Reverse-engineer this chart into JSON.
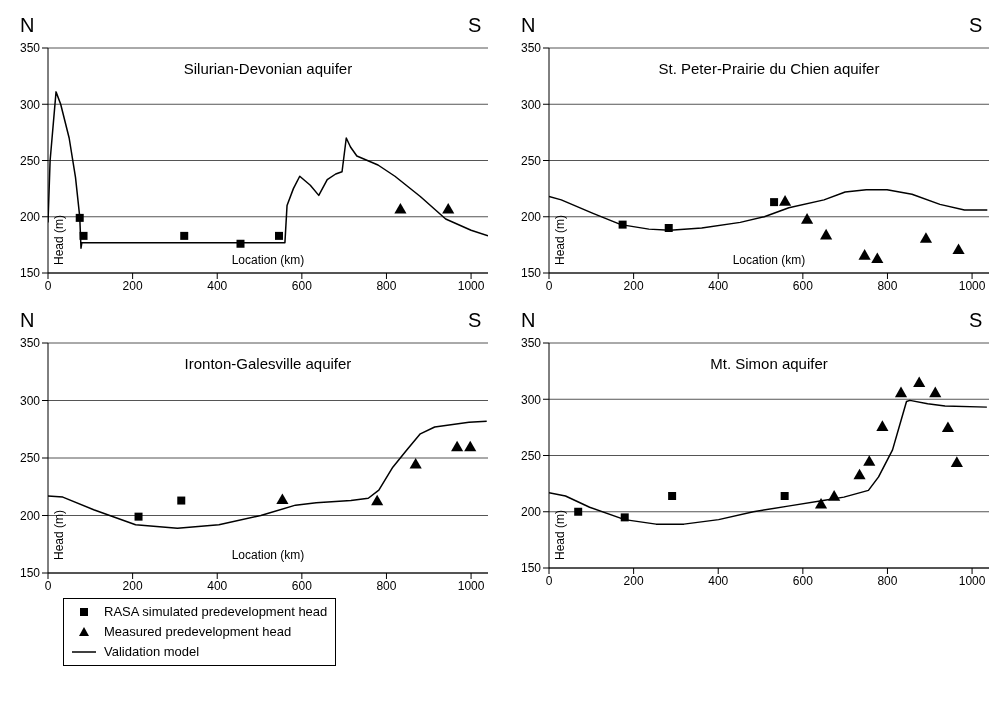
{
  "chart_data": [
    {
      "type": "line",
      "title": "Silurian-Devonian aquifer",
      "xlabel": "Location (km)",
      "ylabel": "Head (m)",
      "annotations": [
        "N",
        "S"
      ],
      "xlim": [
        0,
        1040
      ],
      "xticks": [
        0,
        200,
        400,
        600,
        800,
        1000
      ],
      "ylim": [
        150,
        350
      ],
      "yticks": [
        150,
        200,
        250,
        300,
        350
      ],
      "grid": "y",
      "series": [
        {
          "type": "scatter",
          "marker": "square",
          "color": "#000000",
          "x": [
            75,
            84,
            322,
            455,
            546
          ],
          "values": [
            199,
            183,
            183,
            176,
            183
          ]
        },
        {
          "type": "scatter",
          "marker": "triangle",
          "color": "#000000",
          "x": [
            833,
            946
          ],
          "values": [
            206,
            206
          ]
        },
        {
          "type": "line",
          "marker": "none",
          "color": "#000000",
          "x": [
            0,
            5,
            19,
            30,
            50,
            65,
            75,
            78,
            80,
            560,
            565,
            580,
            595,
            620,
            640,
            660,
            680,
            695,
            705,
            715,
            730,
            780,
            820,
            880,
            940,
            1000,
            1040
          ],
          "values": [
            195,
            250,
            311,
            300,
            270,
            235,
            200,
            172,
            177,
            177,
            210,
            225,
            236,
            228,
            219,
            233,
            238,
            240,
            270,
            262,
            254,
            246,
            236,
            218,
            198,
            188,
            183
          ]
        }
      ]
    },
    {
      "type": "line",
      "title": "St. Peter-Prairie du Chien aquifer",
      "xlabel": "Location (km)",
      "ylabel": "Head (m)",
      "annotations": [
        "N",
        "S"
      ],
      "xlim": [
        0,
        1040
      ],
      "xticks": [
        0,
        200,
        400,
        600,
        800,
        1000
      ],
      "ylim": [
        150,
        350
      ],
      "yticks": [
        150,
        200,
        250,
        300,
        350
      ],
      "grid": "y",
      "series": [
        {
          "type": "scatter",
          "marker": "square",
          "color": "#000000",
          "x": [
            174,
            283,
            532
          ],
          "values": [
            193,
            190,
            213
          ]
        },
        {
          "type": "scatter",
          "marker": "triangle",
          "color": "#000000",
          "x": [
            558,
            610,
            655,
            746,
            776,
            891,
            968
          ],
          "values": [
            213,
            197,
            183,
            165,
            162,
            180,
            170
          ]
        },
        {
          "type": "line",
          "marker": "none",
          "color": "#000000",
          "x": [
            0,
            29,
            104,
            170,
            236,
            286,
            361,
            452,
            509,
            567,
            650,
            700,
            750,
            799,
            858,
            924,
            982,
            1036
          ],
          "values": [
            218,
            215,
            203,
            193,
            189,
            188,
            190,
            195,
            200,
            208,
            215,
            222,
            224,
            224,
            220,
            211,
            206,
            206
          ]
        }
      ]
    },
    {
      "type": "line",
      "title": "Ironton-Galesville aquifer",
      "xlabel": "Location (km)",
      "ylabel": "Head (m)",
      "annotations": [
        "N",
        "S"
      ],
      "xlim": [
        0,
        1040
      ],
      "xticks": [
        0,
        200,
        400,
        600,
        800,
        1000
      ],
      "ylim": [
        150,
        350
      ],
      "yticks": [
        150,
        200,
        250,
        300,
        350
      ],
      "grid": "y",
      "legend": "bottom",
      "series": [
        {
          "type": "scatter",
          "name": "RASA simulated predevelopment head",
          "marker": "square",
          "color": "#000000",
          "x": [
            214,
            315
          ],
          "values": [
            199,
            213
          ]
        },
        {
          "type": "scatter",
          "name": "Measured predevelopment head",
          "marker": "triangle",
          "color": "#000000",
          "x": [
            554,
            778,
            869,
            967,
            998
          ],
          "values": [
            213,
            212,
            244,
            259,
            259
          ]
        },
        {
          "type": "line",
          "name": "Validation model",
          "marker": "none",
          "color": "#000000",
          "x": [
            0,
            35,
            108,
            207,
            306,
            404,
            503,
            585,
            634,
            716,
            757,
            782,
            815,
            848,
            880,
            914,
            995,
            1037
          ],
          "values": [
            217,
            216,
            205,
            192,
            189,
            192,
            200,
            209,
            211,
            213,
            215,
            222,
            242,
            257,
            271,
            277,
            281,
            282
          ]
        }
      ]
    },
    {
      "type": "line",
      "title": "Mt. Simon aquifer",
      "ylabel": "Head (m)",
      "annotations": [
        "N",
        "S"
      ],
      "xlim": [
        0,
        1040
      ],
      "xticks": [
        0,
        200,
        400,
        600,
        800,
        1000
      ],
      "ylim": [
        150,
        350
      ],
      "yticks": [
        150,
        200,
        250,
        300,
        350
      ],
      "grid": "y",
      "series": [
        {
          "type": "scatter",
          "marker": "square",
          "color": "#000000",
          "x": [
            69,
            179,
            291,
            557
          ],
          "values": [
            200,
            195,
            214,
            214
          ]
        },
        {
          "type": "scatter",
          "marker": "triangle",
          "color": "#000000",
          "x": [
            643,
            674,
            734,
            757,
            788,
            832,
            875,
            913,
            943,
            964
          ],
          "values": [
            206,
            213,
            232,
            244,
            275,
            305,
            314,
            305,
            274,
            243
          ]
        },
        {
          "type": "line",
          "marker": "none",
          "color": "#000000",
          "x": [
            0,
            39,
            96,
            179,
            253,
            319,
            401,
            483,
            565,
            648,
            697,
            755,
            779,
            812,
            845,
            853,
            895,
            936,
            1035
          ],
          "values": [
            217,
            214,
            204,
            193,
            189,
            189,
            193,
            200,
            205,
            210,
            213,
            219,
            231,
            255,
            298,
            299,
            296,
            294,
            293
          ]
        }
      ]
    }
  ]
}
